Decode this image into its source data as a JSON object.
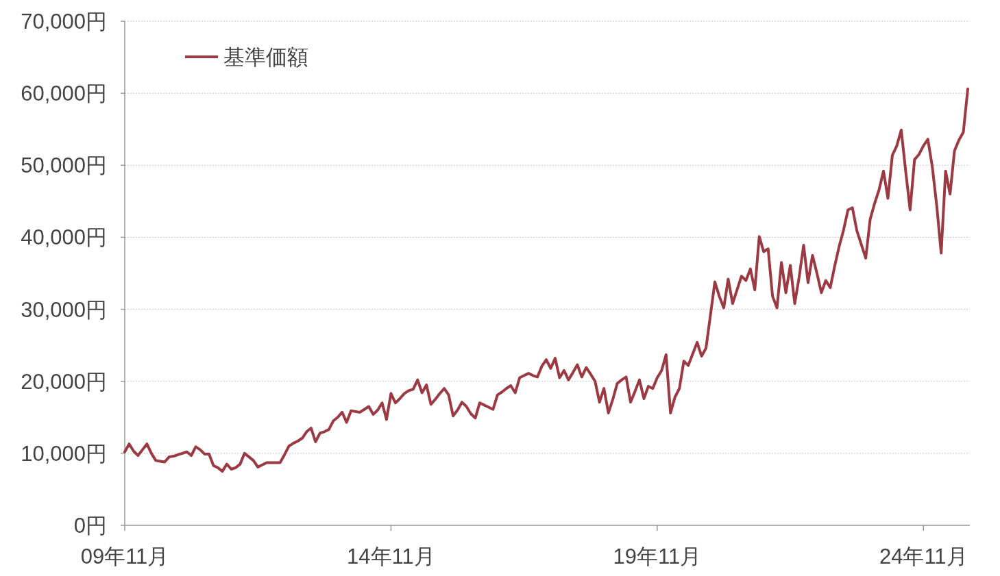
{
  "chart_data": {
    "type": "line",
    "legend": "top left",
    "grid": "y",
    "line_style": "solid",
    "ylim": [
      0,
      70000
    ],
    "yticks": [
      {
        "value": 0,
        "label": "0円"
      },
      {
        "value": 10000,
        "label": "10,000円"
      },
      {
        "value": 20000,
        "label": "20,000円"
      },
      {
        "value": 30000,
        "label": "30,000円"
      },
      {
        "value": 40000,
        "label": "40,000円"
      },
      {
        "value": 50000,
        "label": "50,000円"
      },
      {
        "value": 60000,
        "label": "60,000円"
      },
      {
        "value": 70000,
        "label": "70,000円"
      }
    ],
    "categories": [
      "09年11月",
      null,
      null,
      null,
      null,
      null,
      null,
      null,
      null,
      null,
      null,
      null,
      null,
      null,
      null,
      null,
      null,
      null,
      null,
      null,
      null,
      null,
      null,
      null,
      null,
      null,
      null,
      null,
      null,
      null,
      null,
      null,
      null,
      null,
      null,
      null,
      null,
      null,
      null,
      null,
      null,
      null,
      null,
      null,
      null,
      null,
      null,
      null,
      null,
      null,
      null,
      null,
      null,
      null,
      null,
      null,
      null,
      null,
      null,
      null,
      "14年11月",
      null,
      null,
      null,
      null,
      null,
      null,
      null,
      null,
      null,
      null,
      null,
      null,
      null,
      null,
      null,
      null,
      null,
      null,
      null,
      null,
      null,
      null,
      null,
      null,
      null,
      null,
      null,
      null,
      null,
      null,
      null,
      null,
      null,
      null,
      null,
      null,
      null,
      null,
      null,
      null,
      null,
      null,
      null,
      null,
      null,
      null,
      null,
      null,
      null,
      null,
      null,
      null,
      null,
      null,
      null,
      null,
      null,
      null,
      null,
      "19年11月",
      null,
      null,
      null,
      null,
      null,
      null,
      null,
      null,
      null,
      null,
      null,
      null,
      null,
      null,
      null,
      null,
      null,
      null,
      null,
      null,
      null,
      null,
      null,
      null,
      null,
      null,
      null,
      null,
      null,
      null,
      null,
      null,
      null,
      null,
      null,
      null,
      null,
      null,
      null,
      null,
      null,
      null,
      null,
      null,
      null,
      null,
      null,
      null,
      null,
      null,
      null,
      null,
      null,
      null,
      null,
      null,
      null,
      null,
      null,
      "24年11月",
      null,
      null,
      null,
      null,
      null,
      null,
      null,
      null,
      null,
      null
    ],
    "series": [
      {
        "name": "基準価額",
        "color": "#9b3a42",
        "values": [
          10200,
          11300,
          10300,
          9700,
          10500,
          11300,
          10000,
          9000,
          8900,
          8800,
          9500,
          9600,
          9800,
          10000,
          10200,
          9700,
          10900,
          10500,
          9900,
          9900,
          8300,
          8000,
          7500,
          8500,
          7800,
          8000,
          8500,
          10000,
          9500,
          9000,
          8100,
          8400,
          8700,
          8700,
          8700,
          8700,
          9800,
          11000,
          11400,
          11700,
          12100,
          13000,
          13500,
          11600,
          12800,
          13000,
          13300,
          14500,
          15000,
          15700,
          14300,
          15900,
          15800,
          15700,
          16100,
          16500,
          15400,
          16000,
          17000,
          14700,
          18300,
          17000,
          17600,
          18300,
          18700,
          18900,
          20200,
          18400,
          19500,
          16800,
          17500,
          18300,
          19000,
          18100,
          15200,
          16000,
          17100,
          16500,
          15500,
          14900,
          17000,
          16700,
          16400,
          16100,
          18100,
          18500,
          19000,
          19400,
          18400,
          20500,
          20800,
          21100,
          20800,
          20600,
          22100,
          23000,
          21800,
          23200,
          20500,
          21500,
          20200,
          21200,
          22300,
          20600,
          21900,
          21000,
          20000,
          17100,
          19000,
          15600,
          17500,
          19700,
          20200,
          20600,
          17100,
          18600,
          20200,
          17600,
          19300,
          19000,
          20500,
          21500,
          23700,
          15600,
          17800,
          19000,
          22800,
          22200,
          23800,
          25400,
          23500,
          24600,
          29200,
          33800,
          31800,
          30200,
          34200,
          30800,
          32700,
          34600,
          34000,
          35600,
          32700,
          40100,
          38000,
          38400,
          31800,
          30200,
          36500,
          32300,
          36100,
          30800,
          34500,
          38900,
          33700,
          37500,
          35000,
          32300,
          34000,
          33000,
          36000,
          38700,
          41000,
          43800,
          44100,
          40900,
          39000,
          37100,
          42500,
          44700,
          46600,
          49200,
          45400,
          51400,
          52700,
          54900,
          49200,
          43800,
          50800,
          51500,
          52700,
          53600,
          49800,
          44400,
          37800,
          49200,
          46000,
          52000,
          53500,
          54600,
          60600
        ]
      }
    ]
  }
}
